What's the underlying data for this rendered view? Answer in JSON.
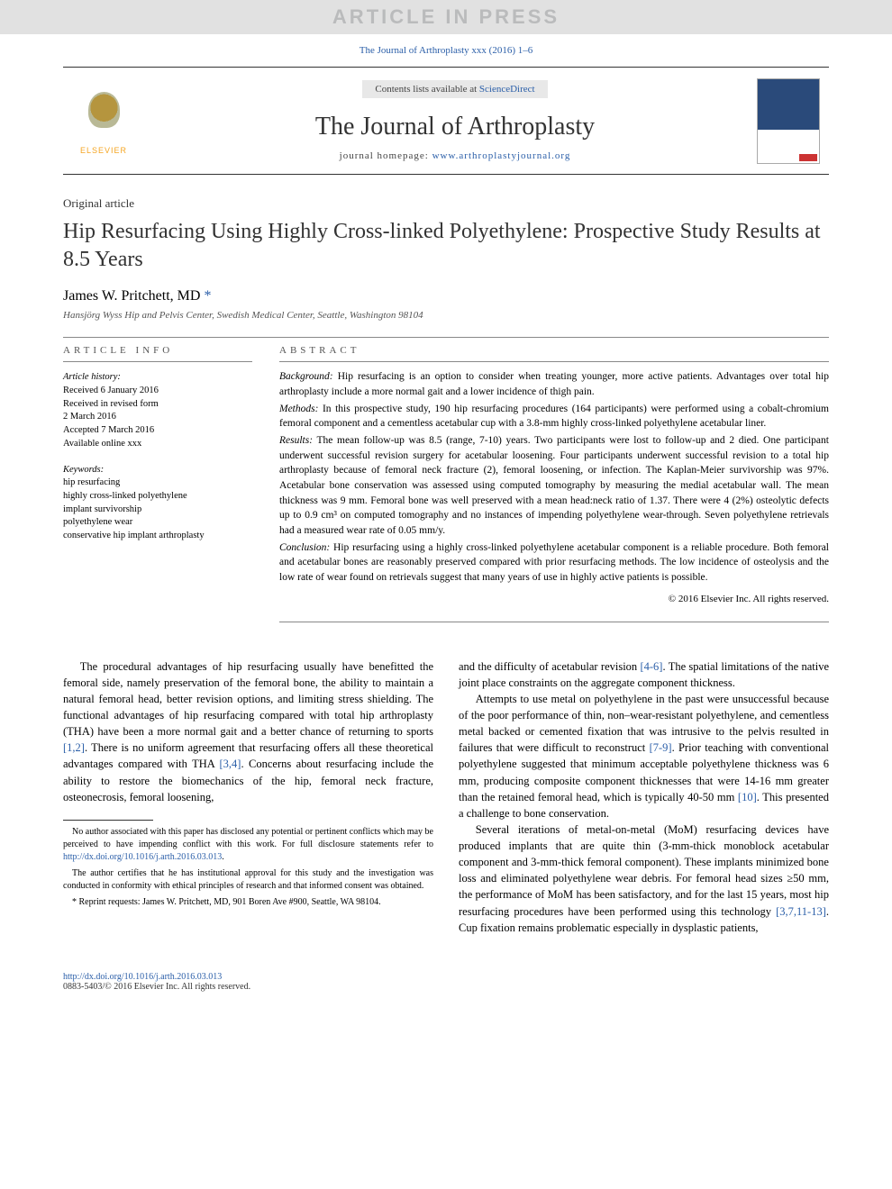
{
  "banner": "ARTICLE IN PRESS",
  "citation": "The Journal of Arthroplasty xxx (2016) 1–6",
  "header": {
    "contents_prefix": "Contents lists available at ",
    "contents_link": "ScienceDirect",
    "journal_name": "The Journal of Arthroplasty",
    "homepage_prefix": "journal homepage: ",
    "homepage_url": "www.arthroplastyjournal.org",
    "publisher": "ELSEVIER"
  },
  "article": {
    "type": "Original article",
    "title": "Hip Resurfacing Using Highly Cross-linked Polyethylene: Prospective Study Results at 8.5 Years",
    "author": "James W. Pritchett, MD",
    "author_mark": "*",
    "affiliation": "Hansjörg Wyss Hip and Pelvis Center, Swedish Medical Center, Seattle, Washington 98104"
  },
  "info": {
    "heading": "article info",
    "history_label": "Article history:",
    "history": [
      "Received 6 January 2016",
      "Received in revised form",
      "2 March 2016",
      "Accepted 7 March 2016",
      "Available online xxx"
    ],
    "keywords_label": "Keywords:",
    "keywords": [
      "hip resurfacing",
      "highly cross-linked polyethylene",
      "implant survivorship",
      "polyethylene wear",
      "conservative hip implant arthroplasty"
    ]
  },
  "abstract": {
    "heading": "abstract",
    "background_label": "Background:",
    "background": " Hip resurfacing is an option to consider when treating younger, more active patients. Advantages over total hip arthroplasty include a more normal gait and a lower incidence of thigh pain.",
    "methods_label": "Methods:",
    "methods": " In this prospective study, 190 hip resurfacing procedures (164 participants) were performed using a cobalt-chromium femoral component and a cementless acetabular cup with a 3.8-mm highly cross-linked polyethylene acetabular liner.",
    "results_label": "Results:",
    "results": " The mean follow-up was 8.5 (range, 7-10) years. Two participants were lost to follow-up and 2 died. One participant underwent successful revision surgery for acetabular loosening. Four participants underwent successful revision to a total hip arthroplasty because of femoral neck fracture (2), femoral loosening, or infection. The Kaplan-Meier survivorship was 97%. Acetabular bone conservation was assessed using computed tomography by measuring the medial acetabular wall. The mean thickness was 9 mm. Femoral bone was well preserved with a mean head:neck ratio of 1.37. There were 4 (2%) osteolytic defects up to 0.9 cm³ on computed tomography and no instances of impending polyethylene wear-through. Seven polyethylene retrievals had a measured wear rate of 0.05 mm/y.",
    "conclusion_label": "Conclusion:",
    "conclusion": " Hip resurfacing using a highly cross-linked polyethylene acetabular component is a reliable procedure. Both femoral and acetabular bones are reasonably preserved compared with prior resurfacing methods. The low incidence of osteolysis and the low rate of wear found on retrievals suggest that many years of use in highly active patients is possible.",
    "copyright": "© 2016 Elsevier Inc. All rights reserved."
  },
  "body": {
    "p1a": "The procedural advantages of hip resurfacing usually have benefitted the femoral side, namely preservation of the femoral bone, the ability to maintain a natural femoral head, better revision options, and limiting stress shielding. The functional advantages of hip resurfacing compared with total hip arthroplasty (THA) have been a more normal gait and a better chance of returning to sports ",
    "ref12": "[1,2]",
    "p1b": ". There is no uniform agreement that resurfacing offers all these theoretical advantages compared with THA ",
    "ref34": "[3,4]",
    "p1c": ". Concerns about resurfacing include the ability to restore the biomechanics of the hip, femoral neck fracture, osteonecrosis, femoral loosening,",
    "p2a": "and the difficulty of acetabular revision ",
    "ref46": "[4-6]",
    "p2b": ". The spatial limitations of the native joint place constraints on the aggregate component thickness.",
    "p3a": "Attempts to use metal on polyethylene in the past were unsuccessful because of the poor performance of thin, non–wear-resistant polyethylene, and cementless metal backed or cemented fixation that was intrusive to the pelvis resulted in failures that were difficult to reconstruct ",
    "ref79": "[7-9]",
    "p3b": ". Prior teaching with conventional polyethylene suggested that minimum acceptable polyethylene thickness was 6 mm, producing composite component thicknesses that were 14-16 mm greater than the retained femoral head, which is typically 40-50 mm ",
    "ref10": "[10]",
    "p3c": ". This presented a challenge to bone conservation.",
    "p4a": "Several iterations of metal-on-metal (MoM) resurfacing devices have produced implants that are quite thin (3-mm-thick monoblock acetabular component and 3-mm-thick femoral component). These implants minimized bone loss and eliminated polyethylene wear debris. For femoral head sizes ≥50 mm, the performance of MoM has been satisfactory, and for the last 15 years, most hip resurfacing procedures have been performed using this technology ",
    "ref371113": "[3,7,11-13]",
    "p4b": ". Cup fixation remains problematic especially in dysplastic patients,"
  },
  "footnotes": {
    "n1a": "No author associated with this paper has disclosed any potential or pertinent conflicts which may be perceived to have impending conflict with this work. For full disclosure statements refer to ",
    "n1link": "http://dx.doi.org/10.1016/j.arth.2016.03.013",
    "n1b": ".",
    "n2": "The author certifies that he has institutional approval for this study and the investigation was conducted in conformity with ethical principles of research and that informed consent was obtained.",
    "n3": "* Reprint requests: James W. Pritchett, MD, 901 Boren Ave #900, Seattle, WA 98104."
  },
  "footer": {
    "doi": "http://dx.doi.org/10.1016/j.arth.2016.03.013",
    "issn": "0883-5403/© 2016 Elsevier Inc. All rights reserved."
  },
  "colors": {
    "link": "#2a5ea8",
    "banner_bg": "#e1e1e1",
    "banner_text": "#babbbc"
  }
}
